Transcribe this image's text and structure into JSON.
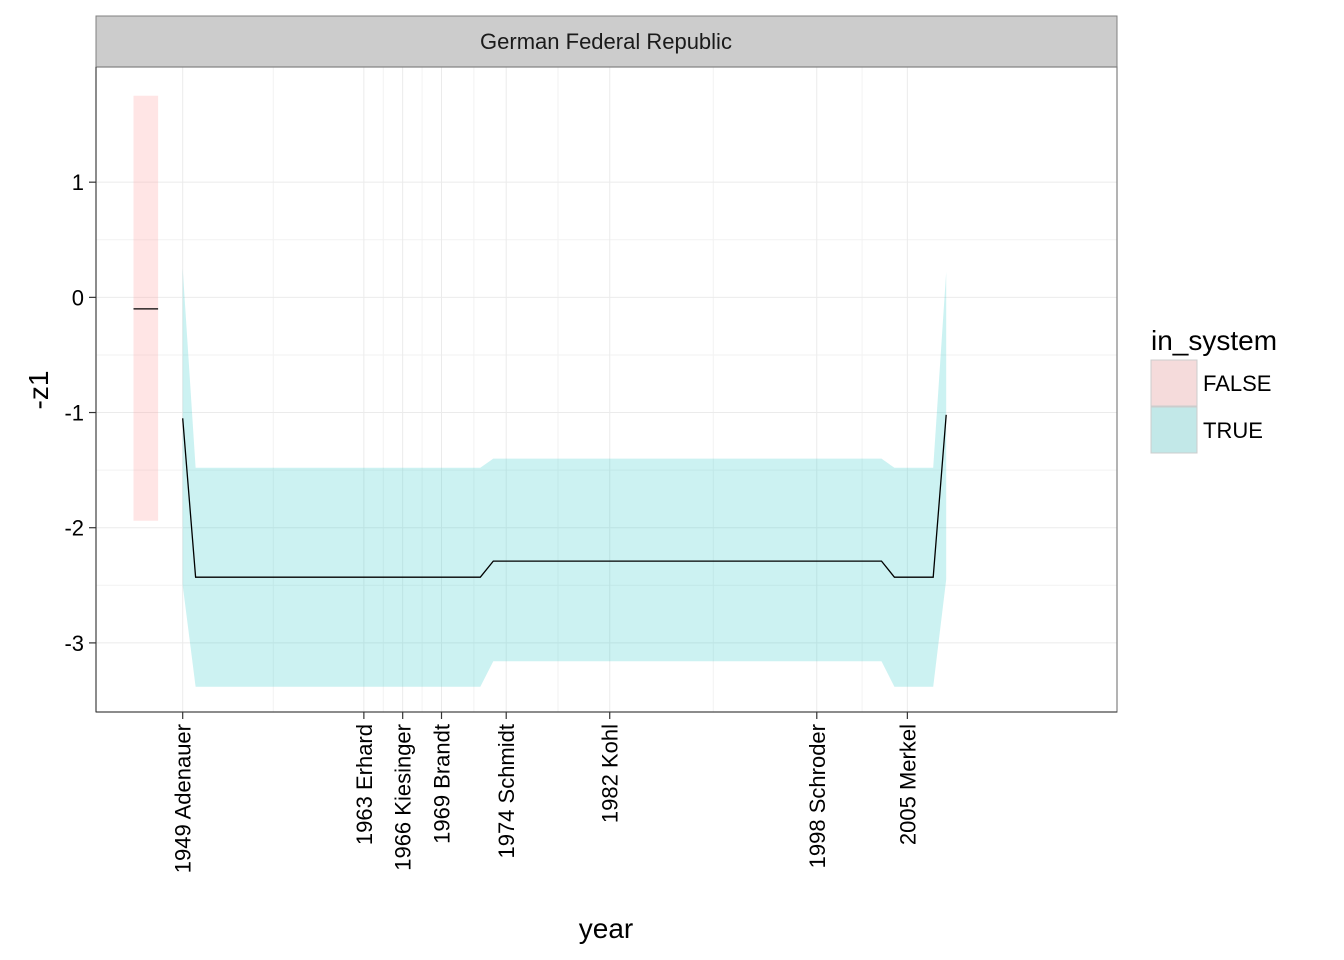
{
  "chart_data": {
    "type": "line",
    "facet_title": "German Federal Republic",
    "xlabel": "year",
    "ylabel": "-z1",
    "xlim": [
      1942.3,
      2021.2
    ],
    "ylim": [
      -3.6,
      2.0
    ],
    "y_ticks": [
      1,
      0,
      -1,
      -2,
      -3
    ],
    "y_tick_labels": [
      "1",
      "0",
      "-1",
      "-2",
      "-3"
    ],
    "x_breaks": [
      1949,
      1963,
      1966,
      1969,
      1974,
      1982,
      1998,
      2005
    ],
    "x_tick_labels": [
      "1949 Adenauer",
      "1963 Erhard",
      "1966 Kiesinger",
      "1969 Brandt",
      "1974 Schmidt",
      "1982 Kohl",
      "1998 Schroder",
      "2005 Merkel"
    ],
    "grid": true,
    "legend": {
      "title": "in_system",
      "position": "right",
      "entries": [
        {
          "label": "FALSE",
          "color": "#FF9999"
        },
        {
          "label": "TRUE",
          "color": "#33CCCC"
        }
      ]
    },
    "series": [
      {
        "name": "FALSE",
        "x": [
          1945.2,
          1947.1
        ],
        "y": [
          -0.1,
          -0.1
        ],
        "lower": [
          -1.94,
          -1.94
        ],
        "upper": [
          1.75,
          1.75
        ]
      },
      {
        "name": "TRUE",
        "x": [
          1949.0,
          1950.0,
          1972.0,
          1973.0,
          1983.0,
          1996.0,
          2003.0,
          2004.0,
          2007.0,
          2008.0
        ],
        "y": [
          -1.05,
          -2.43,
          -2.43,
          -2.29,
          -2.29,
          -2.29,
          -2.29,
          -2.43,
          -2.43,
          -1.02
        ],
        "lower": [
          -2.5,
          -3.38,
          -3.38,
          -3.16,
          -3.16,
          -3.16,
          -3.16,
          -3.38,
          -3.38,
          -2.45
        ],
        "upper": [
          0.25,
          -1.48,
          -1.48,
          -1.4,
          -1.4,
          -1.4,
          -1.4,
          -1.48,
          -1.48,
          0.22
        ]
      }
    ]
  }
}
